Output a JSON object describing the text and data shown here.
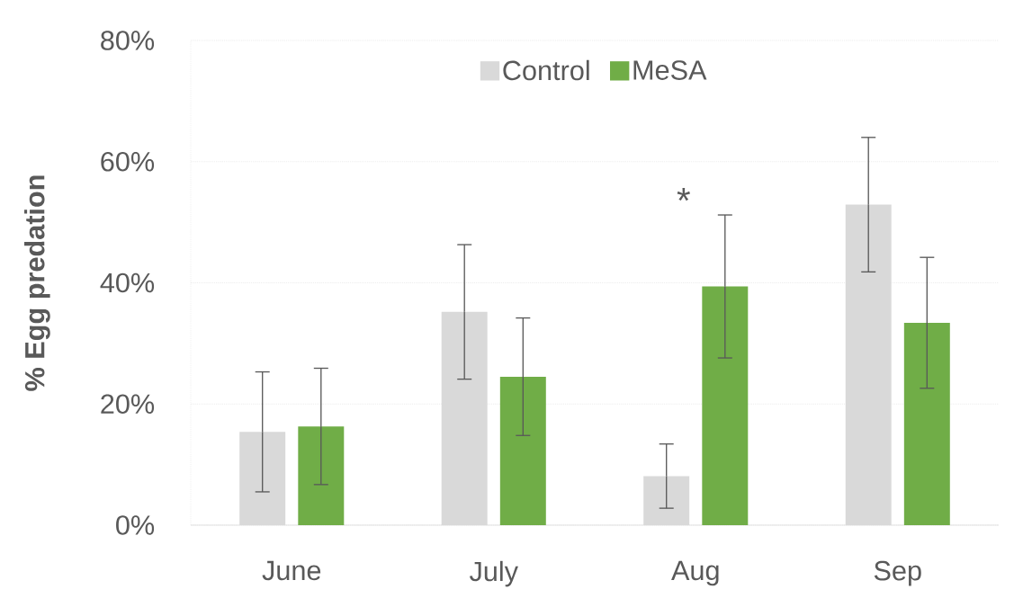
{
  "chart_data": {
    "type": "bar",
    "ylabel": "% Egg predation",
    "categories": [
      "June",
      "July",
      "Aug",
      "Sep"
    ],
    "series": [
      {
        "name": "Control",
        "color": "#d9d9d9",
        "values": [
          15.4,
          35.2,
          8.1,
          52.9
        ],
        "errors": [
          9.9,
          11.1,
          5.3,
          11.1
        ]
      },
      {
        "name": "MeSA",
        "color": "#70ad47",
        "values": [
          16.3,
          24.5,
          39.4,
          33.4
        ],
        "errors": [
          9.6,
          9.7,
          11.8,
          10.8
        ]
      }
    ],
    "ylim": [
      0,
      80
    ],
    "yticks": [
      {
        "value": 0,
        "label": "0%"
      },
      {
        "value": 20,
        "label": "20%"
      },
      {
        "value": 40,
        "label": "40%"
      },
      {
        "value": 60,
        "label": "60%"
      },
      {
        "value": 80,
        "label": "80%"
      }
    ],
    "grid": "y",
    "legend": "top",
    "annotations": [
      "*"
    ]
  }
}
